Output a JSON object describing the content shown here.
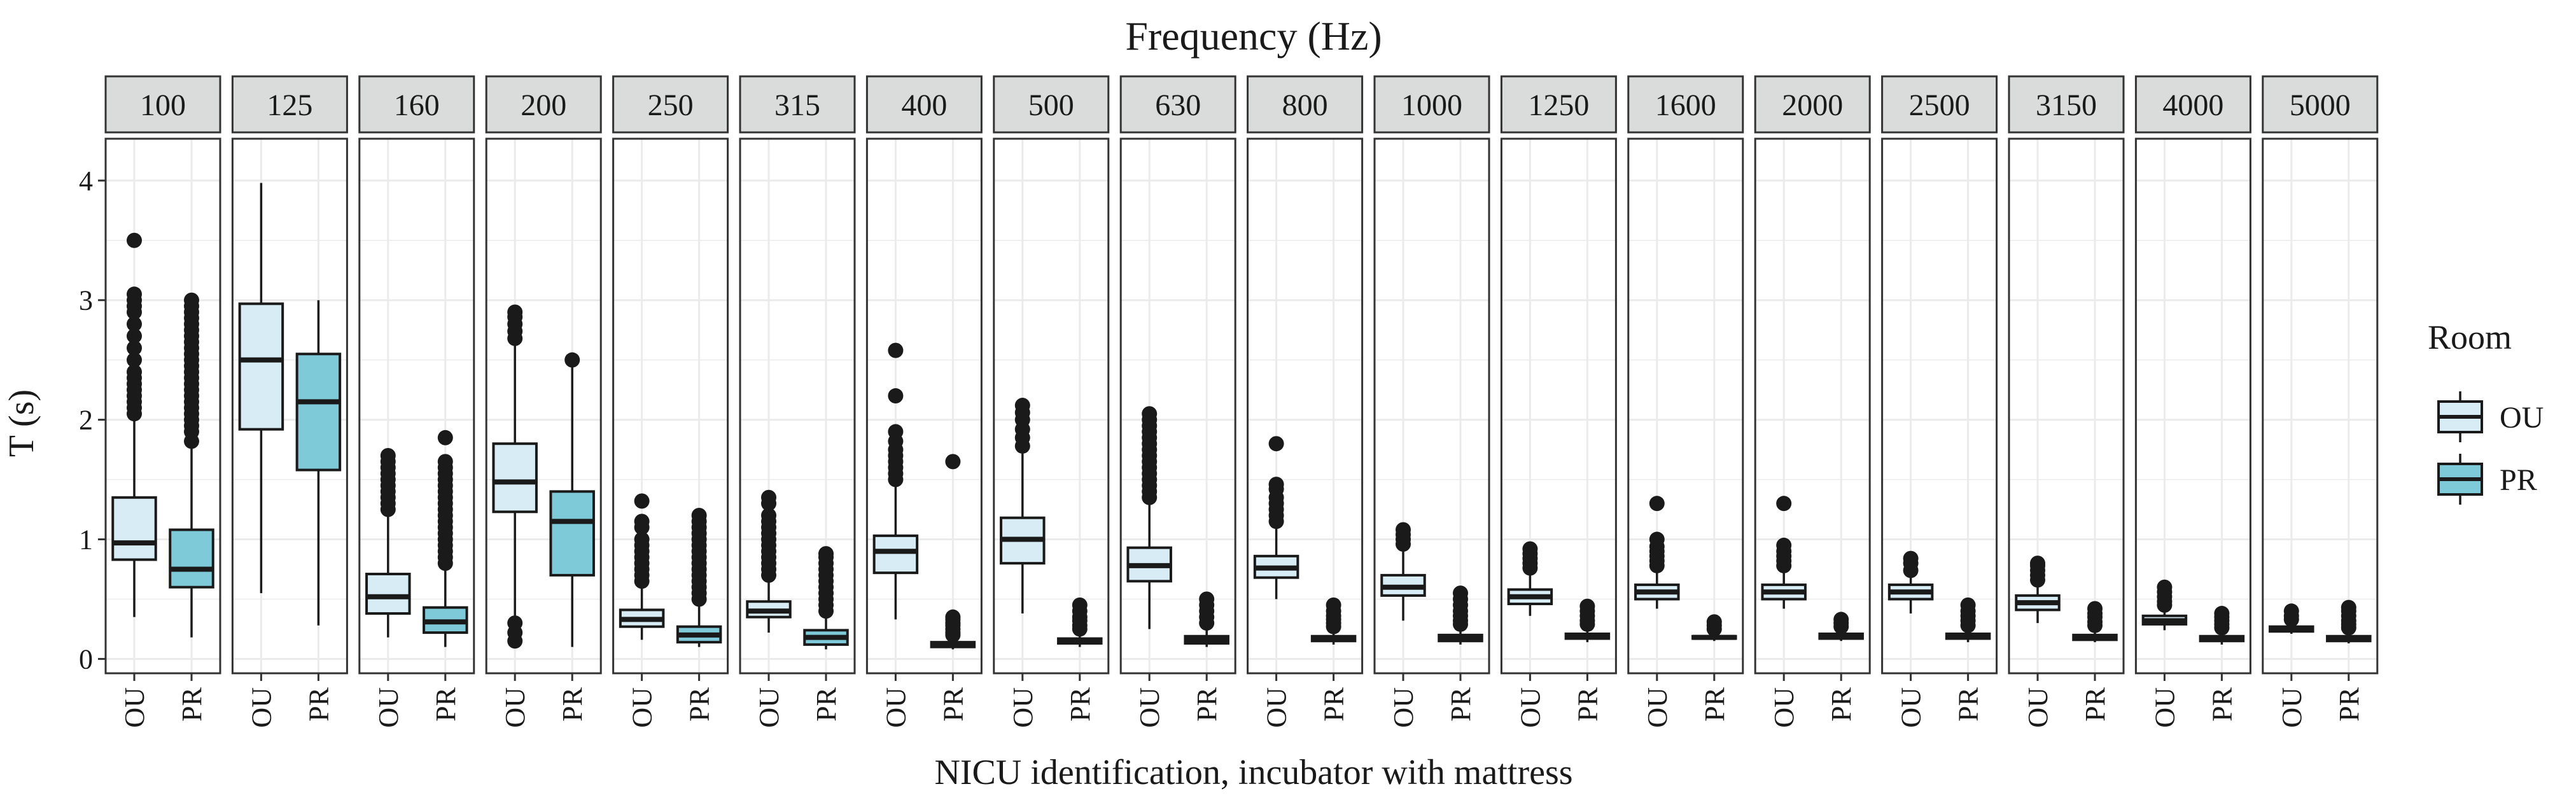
{
  "chart_data": {
    "type": "boxplot",
    "facet_title": "Frequency (Hz)",
    "xlabel": "NICU identification, incubator with mattress",
    "ylabel": "T (s)",
    "ylim": [
      -0.12,
      4.35
    ],
    "y_ticks": [
      "0",
      "1",
      "2",
      "3",
      "4"
    ],
    "legend": {
      "title": "Room",
      "position": "right",
      "entries": [
        {
          "label": "OU",
          "color": "#d7ecf5"
        },
        {
          "label": "PR",
          "color": "#7fcad9"
        }
      ]
    },
    "categories": [
      "OU",
      "PR"
    ],
    "facets": [
      {
        "label": "100",
        "boxes": [
          {
            "group": "OU",
            "whisker_low": 0.35,
            "q1": 0.83,
            "median": 0.97,
            "q3": 1.35,
            "whisker_high": 2.0,
            "outliers": [
              2.05,
              2.1,
              2.15,
              2.2,
              2.25,
              2.3,
              2.35,
              2.4,
              2.5,
              2.6,
              2.7,
              2.8,
              2.9,
              2.95,
              3.0,
              3.05,
              3.5
            ]
          },
          {
            "group": "PR",
            "whisker_low": 0.18,
            "q1": 0.6,
            "median": 0.75,
            "q3": 1.08,
            "whisker_high": 1.78,
            "outliers": [
              1.82,
              1.9,
              1.95,
              2.0,
              2.05,
              2.1,
              2.15,
              2.2,
              2.25,
              2.3,
              2.35,
              2.4,
              2.45,
              2.5,
              2.55,
              2.6,
              2.65,
              2.7,
              2.75,
              2.8,
              2.85,
              2.9,
              2.95,
              3.0
            ]
          }
        ]
      },
      {
        "label": "125",
        "boxes": [
          {
            "group": "OU",
            "whisker_low": 0.55,
            "q1": 1.92,
            "median": 2.5,
            "q3": 2.97,
            "whisker_high": 3.98,
            "outliers": []
          },
          {
            "group": "PR",
            "whisker_low": 0.28,
            "q1": 1.58,
            "median": 2.15,
            "q3": 2.55,
            "whisker_high": 3.0,
            "outliers": []
          }
        ]
      },
      {
        "label": "160",
        "boxes": [
          {
            "group": "OU",
            "whisker_low": 0.18,
            "q1": 0.38,
            "median": 0.52,
            "q3": 0.71,
            "whisker_high": 1.2,
            "outliers": [
              1.25,
              1.3,
              1.35,
              1.4,
              1.45,
              1.5,
              1.55,
              1.6,
              1.65,
              1.7
            ]
          },
          {
            "group": "PR",
            "whisker_low": 0.1,
            "q1": 0.22,
            "median": 0.31,
            "q3": 0.43,
            "whisker_high": 0.75,
            "outliers": [
              0.8,
              0.85,
              0.9,
              0.95,
              1.0,
              1.05,
              1.1,
              1.15,
              1.2,
              1.25,
              1.3,
              1.35,
              1.4,
              1.45,
              1.5,
              1.55,
              1.6,
              1.65,
              1.85
            ]
          }
        ]
      },
      {
        "label": "200",
        "boxes": [
          {
            "group": "OU",
            "whisker_low": 0.35,
            "q1": 1.23,
            "median": 1.48,
            "q3": 1.8,
            "whisker_high": 2.62,
            "outliers": [
              0.15,
              0.22,
              0.3,
              2.68,
              2.74,
              2.8,
              2.86,
              2.9
            ]
          },
          {
            "group": "PR",
            "whisker_low": 0.1,
            "q1": 0.7,
            "median": 1.15,
            "q3": 1.4,
            "whisker_high": 2.45,
            "outliers": [
              2.5
            ]
          }
        ]
      },
      {
        "label": "250",
        "boxes": [
          {
            "group": "OU",
            "whisker_low": 0.16,
            "q1": 0.27,
            "median": 0.33,
            "q3": 0.41,
            "whisker_high": 0.6,
            "outliers": [
              0.65,
              0.7,
              0.75,
              0.8,
              0.85,
              0.9,
              0.95,
              1.0,
              1.1,
              1.15,
              1.32
            ]
          },
          {
            "group": "PR",
            "whisker_low": 0.1,
            "q1": 0.14,
            "median": 0.2,
            "q3": 0.27,
            "whisker_high": 0.46,
            "outliers": [
              0.5,
              0.55,
              0.6,
              0.65,
              0.7,
              0.75,
              0.8,
              0.85,
              0.9,
              0.95,
              1.0,
              1.05,
              1.1,
              1.15,
              1.2
            ]
          }
        ]
      },
      {
        "label": "315",
        "boxes": [
          {
            "group": "OU",
            "whisker_low": 0.22,
            "q1": 0.35,
            "median": 0.4,
            "q3": 0.48,
            "whisker_high": 0.66,
            "outliers": [
              0.7,
              0.75,
              0.8,
              0.85,
              0.9,
              0.95,
              1.0,
              1.05,
              1.1,
              1.15,
              1.2,
              1.3,
              1.35
            ]
          },
          {
            "group": "PR",
            "whisker_low": 0.08,
            "q1": 0.12,
            "median": 0.18,
            "q3": 0.24,
            "whisker_high": 0.36,
            "outliers": [
              0.4,
              0.45,
              0.5,
              0.55,
              0.6,
              0.65,
              0.7,
              0.75,
              0.8,
              0.85,
              0.88
            ]
          }
        ]
      },
      {
        "label": "400",
        "boxes": [
          {
            "group": "OU",
            "whisker_low": 0.33,
            "q1": 0.72,
            "median": 0.9,
            "q3": 1.03,
            "whisker_high": 1.45,
            "outliers": [
              1.5,
              1.55,
              1.6,
              1.65,
              1.7,
              1.75,
              1.82,
              1.9,
              2.2,
              2.58
            ]
          },
          {
            "group": "PR",
            "whisker_low": 0.08,
            "q1": 0.1,
            "median": 0.12,
            "q3": 0.14,
            "whisker_high": 0.18,
            "outliers": [
              0.2,
              0.22,
              0.25,
              0.28,
              0.3,
              0.33,
              0.35,
              1.65
            ]
          }
        ]
      },
      {
        "label": "500",
        "boxes": [
          {
            "group": "OU",
            "whisker_low": 0.38,
            "q1": 0.8,
            "median": 1.0,
            "q3": 1.18,
            "whisker_high": 1.72,
            "outliers": [
              1.78,
              1.85,
              1.92,
              2.0,
              2.06,
              2.12
            ]
          },
          {
            "group": "PR",
            "whisker_low": 0.1,
            "q1": 0.13,
            "median": 0.15,
            "q3": 0.17,
            "whisker_high": 0.22,
            "outliers": [
              0.25,
              0.28,
              0.32,
              0.35,
              0.4,
              0.45
            ]
          }
        ]
      },
      {
        "label": "630",
        "boxes": [
          {
            "group": "OU",
            "whisker_low": 0.25,
            "q1": 0.65,
            "median": 0.78,
            "q3": 0.93,
            "whisker_high": 1.3,
            "outliers": [
              1.35,
              1.4,
              1.45,
              1.5,
              1.55,
              1.6,
              1.65,
              1.7,
              1.75,
              1.8,
              1.85,
              1.9,
              1.95,
              2.0,
              2.05
            ]
          },
          {
            "group": "PR",
            "whisker_low": 0.1,
            "q1": 0.13,
            "median": 0.16,
            "q3": 0.19,
            "whisker_high": 0.26,
            "outliers": [
              0.3,
              0.35,
              0.4,
              0.45,
              0.5
            ]
          }
        ]
      },
      {
        "label": "800",
        "boxes": [
          {
            "group": "OU",
            "whisker_low": 0.5,
            "q1": 0.68,
            "median": 0.76,
            "q3": 0.86,
            "whisker_high": 1.1,
            "outliers": [
              1.15,
              1.2,
              1.25,
              1.3,
              1.35,
              1.42,
              1.46,
              1.8
            ]
          },
          {
            "group": "PR",
            "whisker_low": 0.12,
            "q1": 0.15,
            "median": 0.17,
            "q3": 0.19,
            "whisker_high": 0.24,
            "outliers": [
              0.27,
              0.3,
              0.33,
              0.36,
              0.4,
              0.45
            ]
          }
        ]
      },
      {
        "label": "1000",
        "boxes": [
          {
            "group": "OU",
            "whisker_low": 0.32,
            "q1": 0.53,
            "median": 0.6,
            "q3": 0.7,
            "whisker_high": 0.92,
            "outliers": [
              0.96,
              1.0,
              1.04,
              1.08
            ]
          },
          {
            "group": "PR",
            "whisker_low": 0.12,
            "q1": 0.15,
            "median": 0.17,
            "q3": 0.2,
            "whisker_high": 0.26,
            "outliers": [
              0.29,
              0.32,
              0.36,
              0.4,
              0.45,
              0.5,
              0.55
            ]
          }
        ]
      },
      {
        "label": "1250",
        "boxes": [
          {
            "group": "OU",
            "whisker_low": 0.36,
            "q1": 0.46,
            "median": 0.52,
            "q3": 0.58,
            "whisker_high": 0.72,
            "outliers": [
              0.76,
              0.8,
              0.84,
              0.88,
              0.92
            ]
          },
          {
            "group": "PR",
            "whisker_low": 0.14,
            "q1": 0.17,
            "median": 0.19,
            "q3": 0.21,
            "whisker_high": 0.26,
            "outliers": [
              0.29,
              0.32,
              0.36,
              0.4,
              0.44
            ]
          }
        ]
      },
      {
        "label": "1600",
        "boxes": [
          {
            "group": "OU",
            "whisker_low": 0.42,
            "q1": 0.5,
            "median": 0.56,
            "q3": 0.62,
            "whisker_high": 0.74,
            "outliers": [
              0.78,
              0.82,
              0.86,
              0.9,
              0.94,
              1.0,
              1.3
            ]
          },
          {
            "group": "PR",
            "whisker_low": 0.15,
            "q1": 0.17,
            "median": 0.18,
            "q3": 0.19,
            "whisker_high": 0.22,
            "outliers": [
              0.25,
              0.28,
              0.31
            ]
          }
        ]
      },
      {
        "label": "2000",
        "boxes": [
          {
            "group": "OU",
            "whisker_low": 0.42,
            "q1": 0.5,
            "median": 0.56,
            "q3": 0.62,
            "whisker_high": 0.74,
            "outliers": [
              0.78,
              0.82,
              0.86,
              0.9,
              0.95,
              1.3
            ]
          },
          {
            "group": "PR",
            "whisker_low": 0.15,
            "q1": 0.17,
            "median": 0.19,
            "q3": 0.21,
            "whisker_high": 0.24,
            "outliers": [
              0.27,
              0.3,
              0.33
            ]
          }
        ]
      },
      {
        "label": "2500",
        "boxes": [
          {
            "group": "OU",
            "whisker_low": 0.38,
            "q1": 0.5,
            "median": 0.56,
            "q3": 0.62,
            "whisker_high": 0.7,
            "outliers": [
              0.74,
              0.8,
              0.84
            ]
          },
          {
            "group": "PR",
            "whisker_low": 0.14,
            "q1": 0.17,
            "median": 0.19,
            "q3": 0.21,
            "whisker_high": 0.25,
            "outliers": [
              0.28,
              0.32,
              0.36,
              0.4,
              0.45
            ]
          }
        ]
      },
      {
        "label": "3150",
        "boxes": [
          {
            "group": "OU",
            "whisker_low": 0.3,
            "q1": 0.41,
            "median": 0.47,
            "q3": 0.53,
            "whisker_high": 0.62,
            "outliers": [
              0.66,
              0.7,
              0.74,
              0.78,
              0.8
            ]
          },
          {
            "group": "PR",
            "whisker_low": 0.14,
            "q1": 0.16,
            "median": 0.18,
            "q3": 0.2,
            "whisker_high": 0.25,
            "outliers": [
              0.28,
              0.31,
              0.35,
              0.38,
              0.42
            ]
          }
        ]
      },
      {
        "label": "4000",
        "boxes": [
          {
            "group": "OU",
            "whisker_low": 0.24,
            "q1": 0.29,
            "median": 0.32,
            "q3": 0.36,
            "whisker_high": 0.42,
            "outliers": [
              0.45,
              0.48,
              0.52,
              0.56,
              0.6
            ]
          },
          {
            "group": "PR",
            "whisker_low": 0.12,
            "q1": 0.15,
            "median": 0.17,
            "q3": 0.19,
            "whisker_high": 0.23,
            "outliers": [
              0.26,
              0.29,
              0.32,
              0.35,
              0.38
            ]
          }
        ]
      },
      {
        "label": "5000",
        "boxes": [
          {
            "group": "OU",
            "whisker_low": 0.21,
            "q1": 0.23,
            "median": 0.25,
            "q3": 0.27,
            "whisker_high": 0.3,
            "outliers": [
              0.33,
              0.36,
              0.4
            ]
          },
          {
            "group": "PR",
            "whisker_low": 0.13,
            "q1": 0.15,
            "median": 0.17,
            "q3": 0.19,
            "whisker_high": 0.23,
            "outliers": [
              0.26,
              0.29,
              0.32,
              0.36,
              0.4,
              0.43
            ]
          }
        ]
      }
    ]
  }
}
